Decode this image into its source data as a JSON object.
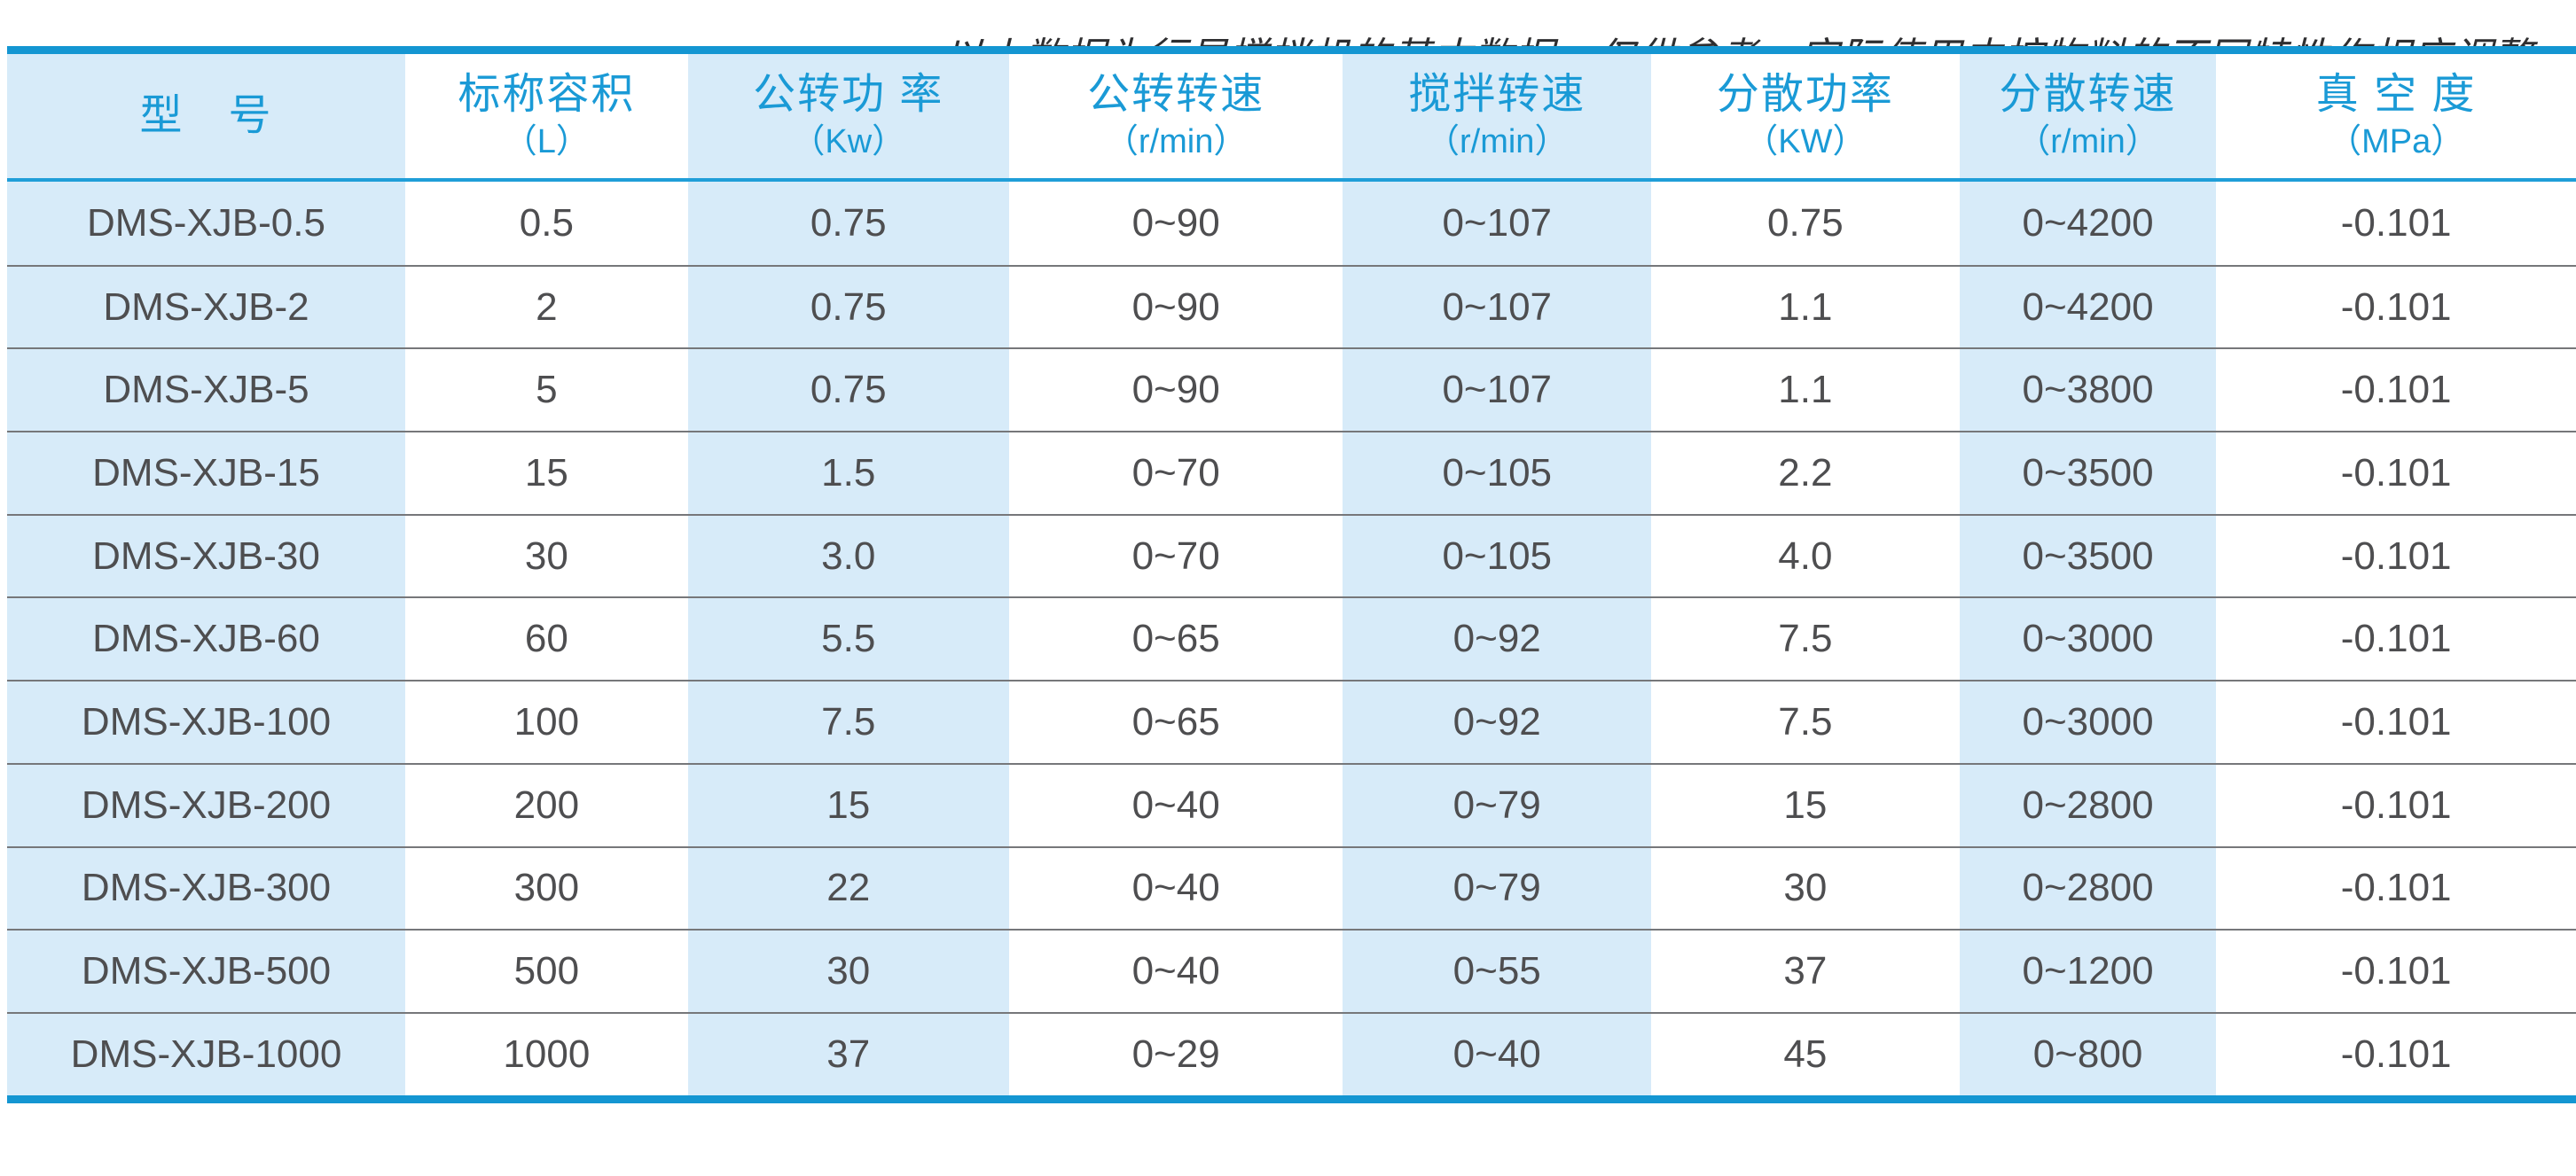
{
  "table": {
    "columns": [
      {
        "title": "型　号",
        "unit": ""
      },
      {
        "title": "标称容积",
        "unit": "（L）"
      },
      {
        "title": "公转功 率",
        "unit": "（Kw）"
      },
      {
        "title": "公转转速",
        "unit": "（r/min）"
      },
      {
        "title": "搅拌转速",
        "unit": "（r/min）"
      },
      {
        "title": "分散功率",
        "unit": "（KW）"
      },
      {
        "title": "分散转速",
        "unit": "（r/min）"
      },
      {
        "title": "真 空 度",
        "unit": "（MPa）"
      }
    ],
    "rows": [
      {
        "cells": [
          "DMS-XJB-0.5",
          "0.5",
          "0.75",
          "0~90",
          "0~107",
          "0.75",
          "0~4200",
          "-0.101"
        ]
      },
      {
        "cells": [
          "DMS-XJB-2",
          "2",
          "0.75",
          "0~90",
          "0~107",
          "1.1",
          "0~4200",
          "-0.101"
        ]
      },
      {
        "cells": [
          "DMS-XJB-5",
          "5",
          "0.75",
          "0~90",
          "0~107",
          "1.1",
          "0~3800",
          "-0.101"
        ]
      },
      {
        "cells": [
          "DMS-XJB-15",
          "15",
          "1.5",
          "0~70",
          "0~105",
          "2.2",
          "0~3500",
          "-0.101"
        ]
      },
      {
        "cells": [
          "DMS-XJB-30",
          "30",
          "3.0",
          "0~70",
          "0~105",
          "4.0",
          "0~3500",
          "-0.101"
        ]
      },
      {
        "cells": [
          "DMS-XJB-60",
          "60",
          "5.5",
          "0~65",
          "0~92",
          "7.5",
          "0~3000",
          "-0.101"
        ]
      },
      {
        "cells": [
          "DMS-XJB-100",
          "100",
          "7.5",
          "0~65",
          "0~92",
          "7.5",
          "0~3000",
          "-0.101"
        ]
      },
      {
        "cells": [
          "DMS-XJB-200",
          "200",
          "15",
          "0~40",
          "0~79",
          "15",
          "0~2800",
          "-0.101"
        ]
      },
      {
        "cells": [
          "DMS-XJB-300",
          "300",
          "22",
          "0~40",
          "0~79",
          "30",
          "0~2800",
          "-0.101"
        ]
      },
      {
        "cells": [
          "DMS-XJB-500",
          "500",
          "30",
          "0~40",
          "0~55",
          "37",
          "0~1200",
          "-0.101"
        ]
      },
      {
        "cells": [
          "DMS-XJB-1000",
          "1000",
          "37",
          "0~29",
          "0~40",
          "45",
          "0~800",
          "-0.101"
        ]
      }
    ]
  },
  "footer": {
    "note": "以上数据为行星搅拌机的基本数据，仅供参考，实际使用中按物料的不同特性作相应调整。"
  },
  "colors": {
    "accent_blue": "#1496d2",
    "header_text_blue": "#1a9ad6",
    "cell_blue": "#d7ebf9",
    "body_text": "#4e4e50",
    "separator_gray": "#76777a"
  }
}
